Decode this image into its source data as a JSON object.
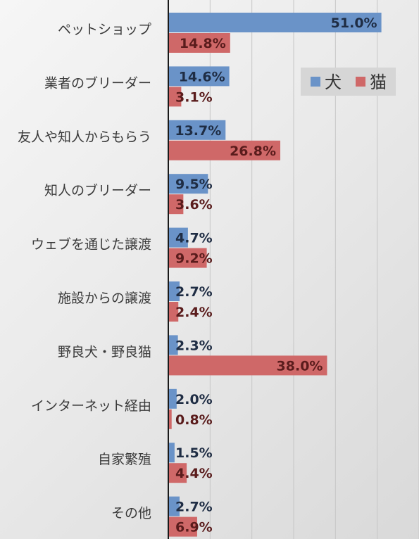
{
  "chart_data": {
    "type": "bar",
    "orientation": "horizontal",
    "categories": [
      "ペットショップ",
      "業者のブリーダー",
      "友人や知人からもらう",
      "知人のブリーダー",
      "ウェブを通じた譲渡",
      "施設からの譲渡",
      "野良犬・野良猫",
      "インターネット経由",
      "自家繁殖",
      "その他"
    ],
    "series": [
      {
        "name": "犬",
        "color": "#6a93c8",
        "label_color": "#1f2d44",
        "values": [
          51.0,
          14.6,
          13.7,
          9.5,
          4.7,
          2.7,
          2.3,
          2.0,
          1.5,
          2.7
        ],
        "labels": [
          "51.0%",
          "14.6%",
          "13.7%",
          "9.5%",
          "4.7%",
          "2.7%",
          "2.3%",
          "2.0%",
          "1.5%",
          "2.7%"
        ]
      },
      {
        "name": "猫",
        "color": "#cf6868",
        "label_color": "#5a1c1c",
        "values": [
          14.8,
          3.1,
          26.8,
          3.6,
          9.2,
          2.4,
          38.0,
          0.8,
          4.4,
          6.9
        ],
        "labels": [
          "14.8%",
          "3.1%",
          "26.8%",
          "3.6%",
          "9.2%",
          "2.4%",
          "38.0%",
          "0.8%",
          "4.4%",
          "6.9%"
        ]
      }
    ],
    "xlim": [
      0,
      60
    ],
    "gridlines": true,
    "legend_position": "top-right"
  }
}
